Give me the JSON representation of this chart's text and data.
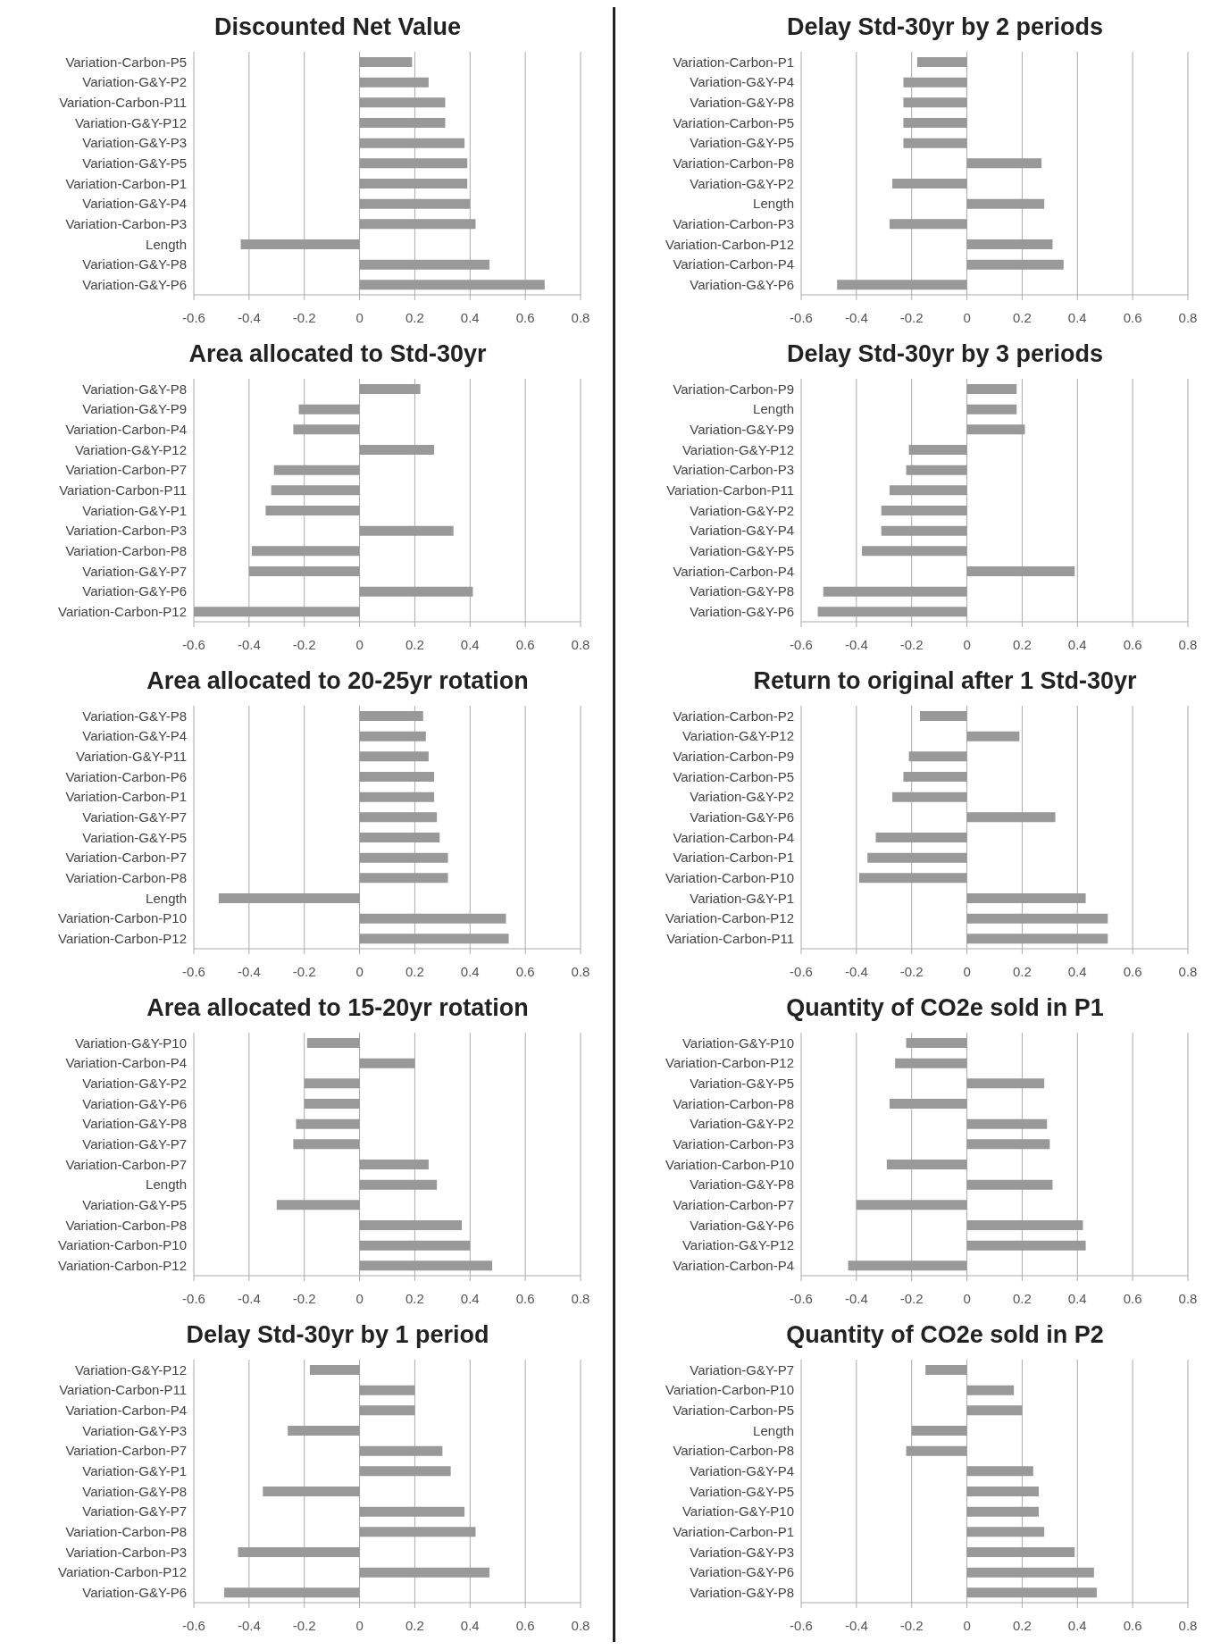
{
  "chart_data": [
    {
      "type": "bar",
      "orientation": "horizontal",
      "title": "Discounted Net Value",
      "categories": [
        "Variation-Carbon-P5",
        "Variation-G&Y-P2",
        "Variation-Carbon-P11",
        "Variation-G&Y-P12",
        "Variation-G&Y-P3",
        "Variation-G&Y-P5",
        "Variation-Carbon-P1",
        "Variation-G&Y-P4",
        "Variation-Carbon-P3",
        "Length",
        "Variation-G&Y-P8",
        "Variation-G&Y-P6"
      ],
      "values": [
        0.19,
        0.25,
        0.31,
        0.31,
        0.38,
        0.39,
        0.39,
        0.4,
        0.42,
        -0.43,
        0.47,
        0.67
      ],
      "color": "#999999",
      "xlim": [
        -0.6,
        0.8
      ],
      "xticks": [
        -0.6,
        -0.4,
        -0.2,
        0,
        0.2,
        0.4,
        0.6,
        0.8
      ],
      "grid": "x"
    },
    {
      "type": "bar",
      "orientation": "horizontal",
      "title": "Delay Std-30yr by 2 periods",
      "categories": [
        "Variation-Carbon-P1",
        "Variation-G&Y-P4",
        "Variation-G&Y-P8",
        "Variation-Carbon-P5",
        "Variation-G&Y-P5",
        "Variation-Carbon-P8",
        "Variation-G&Y-P2",
        "Length",
        "Variation-Carbon-P3",
        "Variation-Carbon-P12",
        "Variation-Carbon-P4",
        "Variation-G&Y-P6"
      ],
      "values": [
        -0.18,
        -0.23,
        -0.23,
        -0.23,
        -0.23,
        0.27,
        -0.27,
        0.28,
        -0.28,
        0.31,
        0.35,
        -0.47
      ],
      "color": "#999999",
      "xlim": [
        -0.6,
        0.8
      ],
      "xticks": [
        -0.6,
        -0.4,
        -0.2,
        0,
        0.2,
        0.4,
        0.6,
        0.8
      ],
      "grid": "x"
    },
    {
      "type": "bar",
      "orientation": "horizontal",
      "title": "Area allocated to Std-30yr",
      "categories": [
        "Variation-G&Y-P8",
        "Variation-G&Y-P9",
        "Variation-Carbon-P4",
        "Variation-G&Y-P12",
        "Variation-Carbon-P7",
        "Variation-Carbon-P11",
        "Variation-G&Y-P1",
        "Variation-Carbon-P3",
        "Variation-Carbon-P8",
        "Variation-G&Y-P7",
        "Variation-G&Y-P6",
        "Variation-Carbon-P12"
      ],
      "values": [
        0.22,
        -0.22,
        -0.24,
        0.27,
        -0.31,
        -0.32,
        -0.34,
        0.34,
        -0.39,
        -0.4,
        0.41,
        -0.6
      ],
      "color": "#999999",
      "xlim": [
        -0.6,
        0.8
      ],
      "xticks": [
        -0.6,
        -0.4,
        -0.2,
        0,
        0.2,
        0.4,
        0.6,
        0.8
      ],
      "grid": "x"
    },
    {
      "type": "bar",
      "orientation": "horizontal",
      "title": "Delay Std-30yr by 3 periods",
      "categories": [
        "Variation-Carbon-P9",
        "Length",
        "Variation-G&Y-P9",
        "Variation-G&Y-P12",
        "Variation-Carbon-P3",
        "Variation-Carbon-P11",
        "Variation-G&Y-P2",
        "Variation-G&Y-P4",
        "Variation-G&Y-P5",
        "Variation-Carbon-P4",
        "Variation-G&Y-P8",
        "Variation-G&Y-P6"
      ],
      "values": [
        0.18,
        0.18,
        0.21,
        -0.21,
        -0.22,
        -0.28,
        -0.31,
        -0.31,
        -0.38,
        0.39,
        -0.52,
        -0.54
      ],
      "color": "#999999",
      "xlim": [
        -0.6,
        0.8
      ],
      "xticks": [
        -0.6,
        -0.4,
        -0.2,
        0,
        0.2,
        0.4,
        0.6,
        0.8
      ],
      "grid": "x"
    },
    {
      "type": "bar",
      "orientation": "horizontal",
      "title": "Area allocated to 20-25yr rotation",
      "categories": [
        "Variation-G&Y-P8",
        "Variation-G&Y-P4",
        "Variation-G&Y-P11",
        "Variation-Carbon-P6",
        "Variation-Carbon-P1",
        "Variation-G&Y-P7",
        "Variation-G&Y-P5",
        "Variation-Carbon-P7",
        "Variation-Carbon-P8",
        "Length",
        "Variation-Carbon-P10",
        "Variation-Carbon-P12"
      ],
      "values": [
        0.23,
        0.24,
        0.25,
        0.27,
        0.27,
        0.28,
        0.29,
        0.32,
        0.32,
        -0.51,
        0.53,
        0.54
      ],
      "color": "#999999",
      "xlim": [
        -0.6,
        0.8
      ],
      "xticks": [
        -0.6,
        -0.4,
        -0.2,
        0,
        0.2,
        0.4,
        0.6,
        0.8
      ],
      "grid": "x"
    },
    {
      "type": "bar",
      "orientation": "horizontal",
      "title": "Return to original after 1 Std-30yr",
      "categories": [
        "Variation-Carbon-P2",
        "Variation-G&Y-P12",
        "Variation-Carbon-P9",
        "Variation-Carbon-P5",
        "Variation-G&Y-P2",
        "Variation-G&Y-P6",
        "Variation-Carbon-P4",
        "Variation-Carbon-P1",
        "Variation-Carbon-P10",
        "Variation-G&Y-P1",
        "Variation-Carbon-P12",
        "Variation-Carbon-P11"
      ],
      "values": [
        -0.17,
        0.19,
        -0.21,
        -0.23,
        -0.27,
        0.32,
        -0.33,
        -0.36,
        -0.39,
        0.43,
        0.51,
        0.51
      ],
      "color": "#999999",
      "xlim": [
        -0.6,
        0.8
      ],
      "xticks": [
        -0.6,
        -0.4,
        -0.2,
        0,
        0.2,
        0.4,
        0.6,
        0.8
      ],
      "grid": "x"
    },
    {
      "type": "bar",
      "orientation": "horizontal",
      "title": "Area allocated to 15-20yr rotation",
      "categories": [
        "Variation-G&Y-P10",
        "Variation-Carbon-P4",
        "Variation-G&Y-P2",
        "Variation-G&Y-P6",
        "Variation-G&Y-P8",
        "Variation-G&Y-P7",
        "Variation-Carbon-P7",
        "Length",
        "Variation-G&Y-P5",
        "Variation-Carbon-P8",
        "Variation-Carbon-P10",
        "Variation-Carbon-P12"
      ],
      "values": [
        -0.19,
        0.2,
        -0.2,
        -0.2,
        -0.23,
        -0.24,
        0.25,
        0.28,
        -0.3,
        0.37,
        0.4,
        0.48
      ],
      "color": "#999999",
      "xlim": [
        -0.6,
        0.8
      ],
      "xticks": [
        -0.6,
        -0.4,
        -0.2,
        0,
        0.2,
        0.4,
        0.6,
        0.8
      ],
      "grid": "x"
    },
    {
      "type": "bar",
      "orientation": "horizontal",
      "title": "Quantity of CO2e sold in P1",
      "categories": [
        "Variation-G&Y-P10",
        "Variation-Carbon-P12",
        "Variation-G&Y-P5",
        "Variation-Carbon-P8",
        "Variation-G&Y-P2",
        "Variation-Carbon-P3",
        "Variation-Carbon-P10",
        "Variation-G&Y-P8",
        "Variation-Carbon-P7",
        "Variation-G&Y-P6",
        "Variation-G&Y-P12",
        "Variation-Carbon-P4"
      ],
      "values": [
        -0.22,
        -0.26,
        0.28,
        -0.28,
        0.29,
        0.3,
        -0.29,
        0.31,
        -0.4,
        0.42,
        0.43,
        -0.43
      ],
      "color": "#999999",
      "xlim": [
        -0.6,
        0.8
      ],
      "xticks": [
        -0.6,
        -0.4,
        -0.2,
        0,
        0.2,
        0.4,
        0.6,
        0.8
      ],
      "grid": "x"
    },
    {
      "type": "bar",
      "orientation": "horizontal",
      "title": "Delay Std-30yr by 1 period",
      "categories": [
        "Variation-G&Y-P12",
        "Variation-Carbon-P11",
        "Variation-Carbon-P4",
        "Variation-G&Y-P3",
        "Variation-Carbon-P7",
        "Variation-G&Y-P1",
        "Variation-G&Y-P8",
        "Variation-G&Y-P7",
        "Variation-Carbon-P8",
        "Variation-Carbon-P3",
        "Variation-Carbon-P12",
        "Variation-G&Y-P6"
      ],
      "values": [
        -0.18,
        0.2,
        0.2,
        -0.26,
        0.3,
        0.33,
        -0.35,
        0.38,
        0.42,
        -0.44,
        0.47,
        -0.49
      ],
      "color": "#999999",
      "xlim": [
        -0.6,
        0.8
      ],
      "xticks": [
        -0.6,
        -0.4,
        -0.2,
        0,
        0.2,
        0.4,
        0.6,
        0.8
      ],
      "grid": "x"
    },
    {
      "type": "bar",
      "orientation": "horizontal",
      "title": "Quantity of CO2e sold in P2",
      "categories": [
        "Variation-G&Y-P7",
        "Variation-Carbon-P10",
        "Variation-Carbon-P5",
        "Length",
        "Variation-Carbon-P8",
        "Variation-G&Y-P4",
        "Variation-G&Y-P5",
        "Variation-G&Y-P10",
        "Variation-Carbon-P1",
        "Variation-G&Y-P3",
        "Variation-G&Y-P6",
        "Variation-G&Y-P8"
      ],
      "values": [
        -0.15,
        0.17,
        0.2,
        -0.2,
        -0.22,
        0.24,
        0.26,
        0.26,
        0.28,
        0.39,
        0.46,
        0.47
      ],
      "color": "#999999",
      "xlim": [
        -0.6,
        0.8
      ],
      "xticks": [
        -0.6,
        -0.4,
        -0.2,
        0,
        0.2,
        0.4,
        0.6,
        0.8
      ],
      "grid": "x"
    }
  ]
}
